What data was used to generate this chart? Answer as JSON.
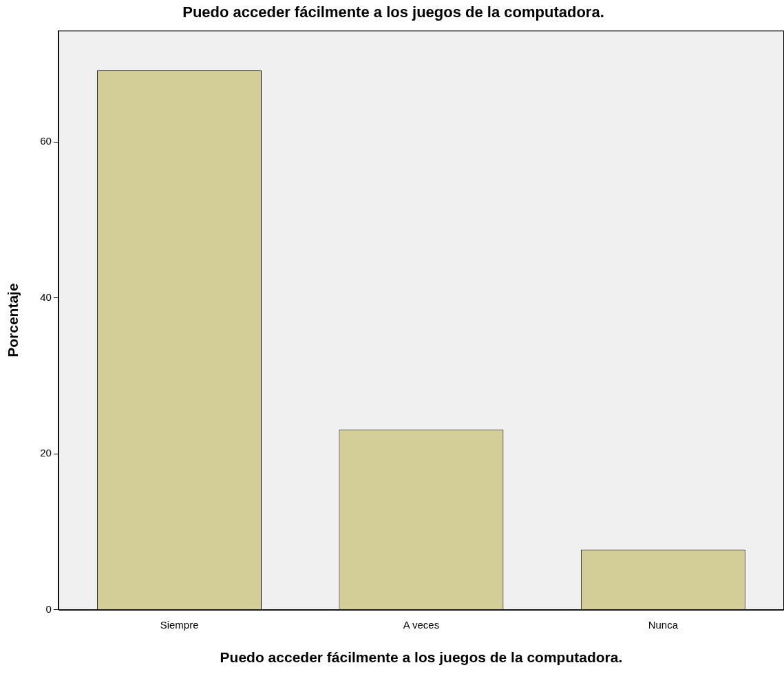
{
  "chart_data": {
    "type": "bar",
    "title": "Puedo acceder fácilmente a los juegos de la computadora.",
    "xlabel": "Puedo acceder fácilmente a los juegos de la computadora.",
    "ylabel": "Porcentaje",
    "categories": [
      "Siempre",
      "A veces",
      "Nunca"
    ],
    "values": [
      69.2,
      23.1,
      7.7
    ],
    "color": "#d3ce97",
    "ylim": [
      0,
      74.3
    ],
    "yticks": [
      0,
      20,
      40,
      60
    ],
    "grid": false,
    "legend": false
  }
}
